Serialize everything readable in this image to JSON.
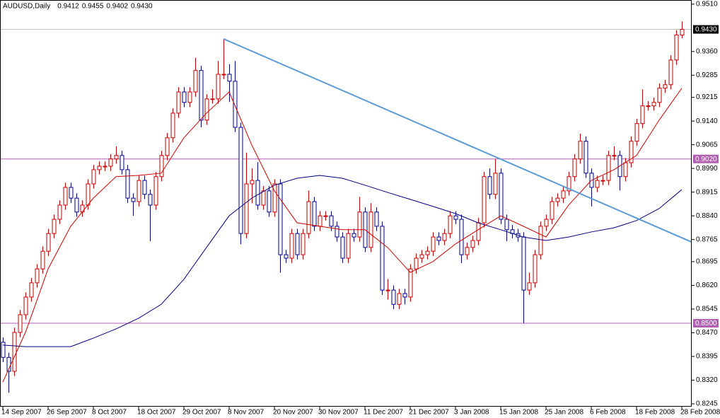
{
  "chart_data": {
    "type": "candlestick",
    "title": "AUDUSD,Daily",
    "last_bar_labels": [
      "0.9412",
      "0.9455",
      "0.9402",
      "0.9430"
    ],
    "categories": [
      "14 Sep 2007",
      null,
      null,
      null,
      null,
      null,
      null,
      null,
      "26 Sep 2007",
      null,
      null,
      null,
      null,
      null,
      null,
      null,
      "8 Oct 2007",
      null,
      null,
      null,
      null,
      null,
      null,
      null,
      "18 Oct 2007",
      null,
      null,
      null,
      null,
      null,
      null,
      null,
      "29 Oct 2007",
      null,
      null,
      null,
      null,
      null,
      null,
      null,
      "8 Nov 2007",
      null,
      null,
      null,
      null,
      null,
      null,
      null,
      "20 Nov 2007",
      null,
      null,
      null,
      null,
      null,
      null,
      null,
      "30 Nov 2007",
      null,
      null,
      null,
      null,
      null,
      null,
      null,
      "11 Dec 2007",
      null,
      null,
      null,
      null,
      null,
      null,
      null,
      "21 Dec 2007",
      null,
      null,
      null,
      null,
      null,
      null,
      null,
      "3 Jan 2008",
      null,
      null,
      null,
      null,
      null,
      null,
      null,
      "15 Jan 2008",
      null,
      null,
      null,
      null,
      null,
      null,
      null,
      "25 Jan 2008",
      null,
      null,
      null,
      null,
      null,
      null,
      null,
      "6 Feb 2008",
      null,
      null,
      null,
      null,
      null,
      null,
      null,
      "18 Feb 2008",
      null,
      null,
      null,
      null,
      null,
      null,
      null,
      "28 Feb 2008"
    ],
    "open": [
      0.844,
      0.8392,
      0.8348,
      0.8471,
      0.8527,
      0.8583,
      0.8628,
      0.8672,
      0.8728,
      0.8784,
      0.8829,
      0.8874,
      0.893,
      0.8896,
      0.8852,
      0.8874,
      0.8941,
      0.8986,
      0.8997,
      0.8997,
      0.902,
      0.9031,
      0.8986,
      0.8896,
      0.8885,
      0.8952,
      0.8908,
      0.8874,
      0.8964,
      0.9031,
      0.9087,
      0.9165,
      0.9232,
      0.9199,
      0.9232,
      0.93,
      0.9143,
      0.921,
      0.921,
      0.9288,
      0.9288,
      0.9266,
      0.912,
      0.8784,
      0.8941,
      0.8952,
      0.8874,
      0.8919,
      0.8852,
      0.8941,
      0.8717,
      0.8706,
      0.8784,
      0.8717,
      0.8784,
      0.8885,
      0.8807,
      0.884,
      0.884,
      0.8807,
      0.8773,
      0.8706,
      0.8784,
      0.8773,
      0.8852,
      0.874,
      0.8852,
      0.8807,
      0.8605,
      0.8605,
      0.856,
      0.8594,
      0.8583,
      0.8672,
      0.8706,
      0.8717,
      0.8728,
      0.8773,
      0.8762,
      0.8784,
      0.884,
      0.8829,
      0.8717,
      0.874,
      0.8762,
      0.8818,
      0.8964,
      0.8908,
      0.8975,
      0.8829,
      0.8796,
      0.8784,
      0.8773,
      0.8605,
      0.8628,
      0.8717,
      0.8807,
      0.8829,
      0.8885,
      0.8896,
      0.8919,
      0.8964,
      0.902,
      0.9076,
      0.8975,
      0.893,
      0.8952,
      0.8952,
      0.9031,
      0.9031,
      0.8964,
      0.9008,
      0.9076,
      0.9132,
      0.9188,
      0.9188,
      0.9199,
      0.9244,
      0.9255,
      0.9333,
      0.9412
    ],
    "high": [
      0.8455,
      0.8407,
      0.8486,
      0.8542,
      0.8598,
      0.8643,
      0.8687,
      0.8743,
      0.8799,
      0.8844,
      0.8889,
      0.8945,
      0.8945,
      0.8911,
      0.8889,
      0.8956,
      0.9001,
      0.9012,
      0.9012,
      0.9035,
      0.906,
      0.9046,
      0.9001,
      0.8911,
      0.8967,
      0.8967,
      0.8923,
      0.8979,
      0.9046,
      0.9102,
      0.918,
      0.9247,
      0.9247,
      0.9247,
      0.934,
      0.9315,
      0.9225,
      0.924,
      0.933,
      0.94,
      0.932,
      0.933,
      0.9135,
      0.904,
      0.899,
      0.901,
      0.8934,
      0.8934,
      0.8956,
      0.8956,
      0.8732,
      0.8799,
      0.8799,
      0.8799,
      0.892,
      0.89,
      0.8855,
      0.8855,
      0.8855,
      0.8822,
      0.8788,
      0.8799,
      0.8799,
      0.89,
      0.8867,
      0.888,
      0.8867,
      0.8822,
      0.864,
      0.862,
      0.8609,
      0.8609,
      0.8687,
      0.8721,
      0.8732,
      0.8743,
      0.8788,
      0.8788,
      0.8799,
      0.8855,
      0.8855,
      0.8844,
      0.8755,
      0.8777,
      0.8833,
      0.8979,
      0.899,
      0.902,
      0.899,
      0.8844,
      0.8811,
      0.8799,
      0.8788,
      0.866,
      0.8732,
      0.8822,
      0.8844,
      0.89,
      0.8911,
      0.8934,
      0.8979,
      0.9035,
      0.91,
      0.9091,
      0.899,
      0.8967,
      0.8967,
      0.9046,
      0.906,
      0.9046,
      0.9023,
      0.9091,
      0.9147,
      0.924,
      0.9203,
      0.9214,
      0.9259,
      0.927,
      0.9348,
      0.9427,
      0.9455
    ],
    "low": [
      0.8377,
      0.828,
      0.8333,
      0.8456,
      0.8512,
      0.8568,
      0.8613,
      0.8657,
      0.8713,
      0.8769,
      0.8814,
      0.8859,
      0.8881,
      0.8837,
      0.8837,
      0.8859,
      0.8926,
      0.8971,
      0.8982,
      0.8982,
      0.9005,
      0.8971,
      0.8881,
      0.884,
      0.887,
      0.8893,
      0.876,
      0.8859,
      0.8949,
      0.9016,
      0.9072,
      0.915,
      0.9184,
      0.9184,
      0.9217,
      0.912,
      0.9128,
      0.9195,
      0.9195,
      0.9273,
      0.92,
      0.9105,
      0.875,
      0.8769,
      0.888,
      0.8859,
      0.8859,
      0.8837,
      0.8837,
      0.866,
      0.8691,
      0.8691,
      0.8702,
      0.8702,
      0.8769,
      0.8792,
      0.8792,
      0.8825,
      0.8792,
      0.8758,
      0.8691,
      0.8691,
      0.8758,
      0.8758,
      0.8725,
      0.8725,
      0.8792,
      0.859,
      0.8575,
      0.8545,
      0.8545,
      0.856,
      0.8568,
      0.8657,
      0.8691,
      0.8702,
      0.8713,
      0.8747,
      0.8747,
      0.8769,
      0.8814,
      0.869,
      0.8702,
      0.8725,
      0.8747,
      0.8803,
      0.8893,
      0.8893,
      0.8814,
      0.876,
      0.8769,
      0.8758,
      0.85,
      0.859,
      0.8613,
      0.8702,
      0.8792,
      0.8814,
      0.887,
      0.8881,
      0.8904,
      0.8949,
      0.9005,
      0.896,
      0.887,
      0.8915,
      0.8937,
      0.8937,
      0.9016,
      0.892,
      0.8949,
      0.8993,
      0.9061,
      0.9117,
      0.9173,
      0.9173,
      0.9184,
      0.9229,
      0.924,
      0.9318,
      0.9402
    ],
    "close": [
      0.8392,
      0.8348,
      0.8471,
      0.8527,
      0.8583,
      0.8628,
      0.8672,
      0.8728,
      0.8784,
      0.8829,
      0.8874,
      0.893,
      0.8896,
      0.8852,
      0.8874,
      0.8941,
      0.8986,
      0.8997,
      0.8997,
      0.902,
      0.9031,
      0.8986,
      0.8896,
      0.8885,
      0.8952,
      0.8908,
      0.8874,
      0.8964,
      0.9031,
      0.9087,
      0.9165,
      0.9232,
      0.9199,
      0.9232,
      0.93,
      0.9143,
      0.921,
      0.921,
      0.9288,
      0.9288,
      0.9266,
      0.912,
      0.8784,
      0.8941,
      0.8952,
      0.8874,
      0.8919,
      0.8852,
      0.8941,
      0.8717,
      0.8706,
      0.8784,
      0.8717,
      0.8784,
      0.8885,
      0.8807,
      0.884,
      0.884,
      0.8807,
      0.8773,
      0.8706,
      0.8784,
      0.8773,
      0.8852,
      0.874,
      0.8852,
      0.8807,
      0.8605,
      0.8605,
      0.856,
      0.8594,
      0.8583,
      0.8672,
      0.8706,
      0.8717,
      0.8728,
      0.8773,
      0.8762,
      0.8784,
      0.884,
      0.8829,
      0.8717,
      0.874,
      0.8762,
      0.8818,
      0.8964,
      0.8908,
      0.8975,
      0.8829,
      0.8796,
      0.8784,
      0.8773,
      0.8605,
      0.8628,
      0.8717,
      0.8807,
      0.8829,
      0.8885,
      0.8896,
      0.8919,
      0.8964,
      0.902,
      0.9076,
      0.8975,
      0.893,
      0.8952,
      0.8952,
      0.9031,
      0.9031,
      0.8964,
      0.9008,
      0.9076,
      0.9132,
      0.9188,
      0.9188,
      0.9199,
      0.9244,
      0.9255,
      0.9333,
      0.9412,
      0.943
    ],
    "up_color": "#c00000",
    "down_color": "#000080",
    "lines": [
      {
        "color": "#000080",
        "x": [
          0,
          4,
          8,
          12,
          16,
          20,
          24,
          28,
          32,
          36,
          40,
          44,
          48,
          52,
          56,
          60,
          64,
          68,
          72,
          76,
          80,
          84,
          88,
          92,
          96,
          100,
          104,
          108,
          112,
          116,
          120
        ],
        "values": [
          0.8431,
          0.8426,
          0.8426,
          0.8426,
          0.8453,
          0.8482,
          0.8516,
          0.856,
          0.8639,
          0.874,
          0.884,
          0.8896,
          0.8937,
          0.8959,
          0.8968,
          0.8959,
          0.8937,
          0.8914,
          0.8892,
          0.887,
          0.8847,
          0.8818,
          0.8796,
          0.8773,
          0.8762,
          0.8773,
          0.8789,
          0.8802,
          0.8825,
          0.8863,
          0.8923
        ]
      },
      {
        "color": "#d00000",
        "x": [
          0,
          4,
          8,
          12,
          16,
          20,
          24,
          28,
          32,
          36,
          40,
          44,
          48,
          52,
          56,
          60,
          64,
          68,
          72,
          76,
          80,
          84,
          88,
          92,
          96,
          100,
          104,
          108,
          112,
          116,
          120
        ],
        "values": [
          0.8314,
          0.8471,
          0.8672,
          0.8807,
          0.8896,
          0.8964,
          0.8968,
          0.8975,
          0.9087,
          0.9165,
          0.9232,
          0.9064,
          0.8919,
          0.8818,
          0.8807,
          0.8796,
          0.8796,
          0.874,
          0.8661,
          0.8695,
          0.8751,
          0.8796,
          0.884,
          0.8807,
          0.8773,
          0.8874,
          0.8952,
          0.8986,
          0.9031,
          0.9143,
          0.9244
        ]
      },
      {
        "color": "#5b9bd5",
        "width": 2,
        "x": [
          39,
          122
        ],
        "values": [
          0.94,
          0.8755
        ]
      }
    ],
    "hlines": [
      {
        "value": 0.943,
        "label": "0.9430",
        "color": "#c0c0c0"
      },
      {
        "value": 0.902,
        "label": "0.9020",
        "color": "#b060b0"
      },
      {
        "value": 0.85,
        "label": "0.8500",
        "color": "#b060b0"
      }
    ],
    "ylim": [
      0.8236,
      0.9523
    ],
    "yticks": [
      {
        "value": 0.951,
        "label": "0.9510"
      },
      {
        "value": 0.936,
        "label": "0.9360"
      },
      {
        "value": 0.9285,
        "label": "0.9285"
      },
      {
        "value": 0.9215,
        "label": "0.9215"
      },
      {
        "value": 0.914,
        "label": "0.9140"
      },
      {
        "value": 0.9065,
        "label": "0.9065"
      },
      {
        "value": 0.899,
        "label": "0.8990"
      },
      {
        "value": 0.8915,
        "label": "0.8915"
      },
      {
        "value": 0.884,
        "label": "0.8840"
      },
      {
        "value": 0.8765,
        "label": "0.8765"
      },
      {
        "value": 0.8695,
        "label": "0.8695"
      },
      {
        "value": 0.862,
        "label": "0.8620"
      },
      {
        "value": 0.8545,
        "label": "0.8545"
      },
      {
        "value": 0.847,
        "label": "0.8470"
      },
      {
        "value": 0.8395,
        "label": "0.8395"
      },
      {
        "value": 0.832,
        "label": "0.8320"
      },
      {
        "value": 0.8245,
        "label": "0.8245"
      }
    ],
    "grid": false
  }
}
